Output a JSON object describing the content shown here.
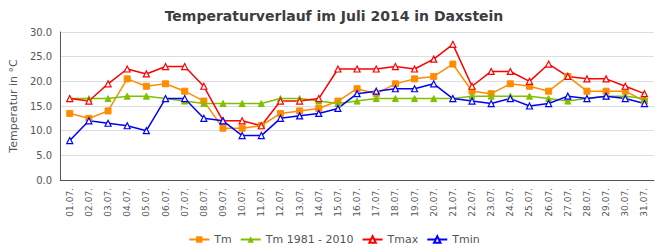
{
  "chart_data": {
    "type": "line",
    "title": "Temperaturverlauf im Juli 2014 in Daxstein",
    "ylabel": "Temperatur in °C",
    "categories": [
      "01.07.",
      "02.07.",
      "03.07.",
      "04.07.",
      "05.07.",
      "06.07.",
      "07.07.",
      "08.07.",
      "09.07.",
      "10.07.",
      "11.07.",
      "12.07.",
      "13.07.",
      "14.07.",
      "15.07.",
      "16.07.",
      "17.07.",
      "18.07.",
      "19.07.",
      "20.07.",
      "21.07.",
      "22.07.",
      "23.07.",
      "24.07.",
      "25.07.",
      "26.07.",
      "27.07.",
      "28.07.",
      "29.07.",
      "30.07.",
      "31.07."
    ],
    "series": [
      {
        "name": "Tm",
        "color": "#FF8C00",
        "marker": "square",
        "values": [
          13.5,
          12.5,
          14.0,
          20.5,
          19.0,
          19.5,
          18.0,
          16.0,
          10.5,
          10.5,
          11.0,
          13.5,
          14.0,
          14.5,
          16.0,
          18.5,
          17.5,
          19.5,
          20.5,
          21.0,
          23.5,
          18.0,
          17.5,
          19.5,
          19.0,
          18.0,
          21.0,
          18.0,
          18.0,
          18.0,
          16.0
        ]
      },
      {
        "name": "Tm 1981 - 2010",
        "color": "#80C000",
        "marker": "triangle",
        "values": [
          16.5,
          16.5,
          16.5,
          17.0,
          17.0,
          16.5,
          16.0,
          15.5,
          15.5,
          15.5,
          15.5,
          16.5,
          16.5,
          16.0,
          15.5,
          16.0,
          16.5,
          16.5,
          16.5,
          16.5,
          16.5,
          17.0,
          17.0,
          17.0,
          17.0,
          16.5,
          16.0,
          16.5,
          17.0,
          17.0,
          16.5
        ]
      },
      {
        "name": "Tmax",
        "color": "#FF0000",
        "marker": "triangle-open",
        "values": [
          16.5,
          16.0,
          19.5,
          22.5,
          21.5,
          23.0,
          23.0,
          19.0,
          12.0,
          12.0,
          11.0,
          16.0,
          16.0,
          16.5,
          22.5,
          22.5,
          22.5,
          23.0,
          22.5,
          24.5,
          27.5,
          19.0,
          22.0,
          22.0,
          20.0,
          23.5,
          21.0,
          20.5,
          20.5,
          19.0,
          17.5
        ]
      },
      {
        "name": "Tmin",
        "color": "#0000FF",
        "marker": "triangle-open",
        "values": [
          8.0,
          12.0,
          11.5,
          11.0,
          10.0,
          16.5,
          16.5,
          12.5,
          12.0,
          9.0,
          9.0,
          12.5,
          13.0,
          13.5,
          14.5,
          17.5,
          18.0,
          18.5,
          18.5,
          19.5,
          16.5,
          16.0,
          15.5,
          16.5,
          15.0,
          15.5,
          17.0,
          16.5,
          17.0,
          16.5,
          15.5
        ]
      }
    ],
    "ylim": [
      0.0,
      30.0
    ],
    "yticks": [
      {
        "value": 0.0,
        "label": "0.0"
      },
      {
        "value": 5.0,
        "label": "5.0"
      },
      {
        "value": 10.0,
        "label": "10.0"
      },
      {
        "value": 15.0,
        "label": "15.0"
      },
      {
        "value": 20.0,
        "label": "20.0"
      },
      {
        "value": 25.0,
        "label": "25.0"
      },
      {
        "value": 30.0,
        "label": "30.0"
      }
    ],
    "grid": true,
    "legend": "lower center"
  }
}
